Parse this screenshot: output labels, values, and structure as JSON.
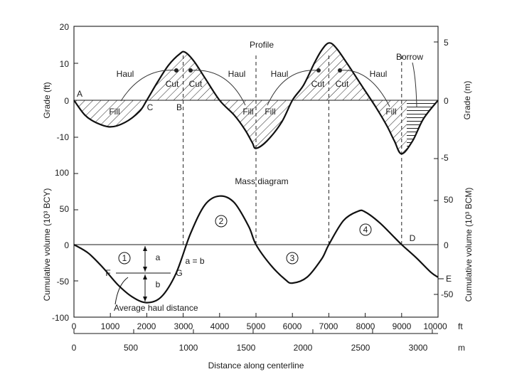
{
  "chart_data": [
    {
      "type": "line",
      "title": "Profile",
      "ylabel": "Grade (ft)",
      "ylabel_right": "Grade (m)",
      "xlim": [
        0,
        10000
      ],
      "ylim": [
        -20,
        20
      ],
      "x": [
        0,
        300,
        600,
        1000,
        1400,
        1800,
        2000,
        2300,
        2600,
        2900,
        3050,
        3300,
        3600,
        4000,
        4400,
        4700,
        4900,
        5000,
        5300,
        5700,
        6000,
        6300,
        6600,
        6800,
        7000,
        7200,
        7500,
        7900,
        8300,
        8600,
        8800,
        9000,
        9300,
        9600,
        10000
      ],
      "series": [
        {
          "name": "Ground profile",
          "values": [
            0,
            -4,
            -6,
            -7.2,
            -6,
            -3,
            0,
            5,
            9.5,
            12.5,
            13,
            10.5,
            6,
            0,
            -4,
            -8,
            -11.5,
            -13,
            -11,
            -6,
            0,
            4,
            10,
            13.5,
            15.5,
            14.2,
            10,
            4,
            -2,
            -7,
            -11,
            -14.5,
            -11,
            -5,
            0
          ]
        }
      ],
      "annotations": [
        {
          "text": "Haul"
        },
        {
          "text": "Haul"
        },
        {
          "text": "Haul"
        },
        {
          "text": "Haul"
        },
        {
          "text": "Cut"
        },
        {
          "text": "Cut"
        },
        {
          "text": "Cut"
        },
        {
          "text": "Cut"
        },
        {
          "text": "Fill"
        },
        {
          "text": "Fill"
        },
        {
          "text": "Fill"
        },
        {
          "text": "Fill"
        },
        {
          "text": "Borrow"
        },
        {
          "text": "A"
        },
        {
          "text": "B"
        },
        {
          "text": "C"
        }
      ],
      "yticks_left": [
        "20",
        "10",
        "0",
        "-10"
      ],
      "yticks_right": [
        "5",
        "0",
        "-5"
      ]
    },
    {
      "type": "line",
      "title": "Mass diagram",
      "ylabel": "Cumulative volume (10³ BCY)",
      "ylabel_right": "Cumulative volume (10³ BCM)",
      "xlabel": "Distance along centerline",
      "xlim": [
        0,
        10000
      ],
      "ylim": [
        -100,
        100
      ],
      "x": [
        0,
        400,
        800,
        1200,
        1600,
        2000,
        2400,
        2800,
        3200,
        3600,
        4000,
        4400,
        4800,
        5000,
        5400,
        5800,
        6000,
        6400,
        6800,
        7000,
        7400,
        7800,
        8000,
        8400,
        8800,
        9000,
        9400,
        9800,
        10000
      ],
      "series": [
        {
          "name": "Mass curve",
          "values": [
            0,
            -12,
            -32,
            -55,
            -72,
            -80,
            -72,
            -40,
            15,
            55,
            67,
            58,
            25,
            0,
            -28,
            -48,
            -53,
            -45,
            -20,
            0,
            33,
            46,
            45,
            30,
            10,
            0,
            -18,
            -38,
            -45
          ]
        }
      ],
      "annotations": [
        {
          "text": "1"
        },
        {
          "text": "2"
        },
        {
          "text": "3"
        },
        {
          "text": "4"
        },
        {
          "text": "a"
        },
        {
          "text": "b"
        },
        {
          "text": "a = b"
        },
        {
          "text": "F"
        },
        {
          "text": "G"
        },
        {
          "text": "D"
        },
        {
          "text": "E"
        },
        {
          "text": "Average haul distance"
        }
      ],
      "yticks_left": [
        "100",
        "50",
        "0",
        "-50",
        "-100"
      ],
      "yticks_right": [
        "50",
        "0",
        "-50"
      ],
      "xticks_ft": [
        "0",
        "1000",
        "2000",
        "3000",
        "4000",
        "5000",
        "6000",
        "7000",
        "8000",
        "9000",
        "10000"
      ],
      "x_unit_ft": "ft",
      "xticks_m": [
        "0",
        "500",
        "1000",
        "1500",
        "2000",
        "2500",
        "3000"
      ],
      "x_unit_m": "m"
    }
  ]
}
